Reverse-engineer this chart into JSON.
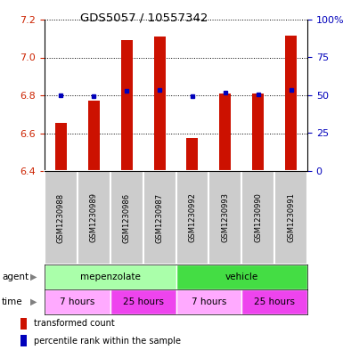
{
  "title": "GDS5057 / 10557342",
  "samples": [
    "GSM1230988",
    "GSM1230989",
    "GSM1230986",
    "GSM1230987",
    "GSM1230992",
    "GSM1230993",
    "GSM1230990",
    "GSM1230991"
  ],
  "red_values": [
    6.655,
    6.77,
    7.09,
    7.11,
    6.575,
    6.81,
    6.81,
    7.115
  ],
  "blue_values": [
    6.8,
    6.795,
    6.825,
    6.83,
    6.795,
    6.815,
    6.805,
    6.83
  ],
  "ylim_left": [
    6.4,
    7.2
  ],
  "ylim_right": [
    0,
    100
  ],
  "yticks_left": [
    6.4,
    6.6,
    6.8,
    7.0,
    7.2
  ],
  "yticks_right": [
    0,
    25,
    50,
    75,
    100
  ],
  "agent_groups": [
    {
      "label": "mepenzolate",
      "start": 0,
      "end": 4,
      "color": "#aaffaa"
    },
    {
      "label": "vehicle",
      "start": 4,
      "end": 8,
      "color": "#44dd44"
    }
  ],
  "time_groups": [
    {
      "label": "7 hours",
      "start": 0,
      "end": 2,
      "color": "#ffaaff"
    },
    {
      "label": "25 hours",
      "start": 2,
      "end": 4,
      "color": "#ee44ee"
    },
    {
      "label": "7 hours",
      "start": 4,
      "end": 6,
      "color": "#ffaaff"
    },
    {
      "label": "25 hours",
      "start": 6,
      "end": 8,
      "color": "#ee44ee"
    }
  ],
  "bar_color": "#cc1100",
  "dot_color": "#0000bb",
  "left_tick_color": "#cc2200",
  "right_tick_color": "#0000bb",
  "legend_items": [
    "transformed count",
    "percentile rank within the sample"
  ],
  "bar_width": 0.35,
  "baseline": 6.4,
  "label_bg": "#cccccc",
  "fig_bg": "#ffffff"
}
